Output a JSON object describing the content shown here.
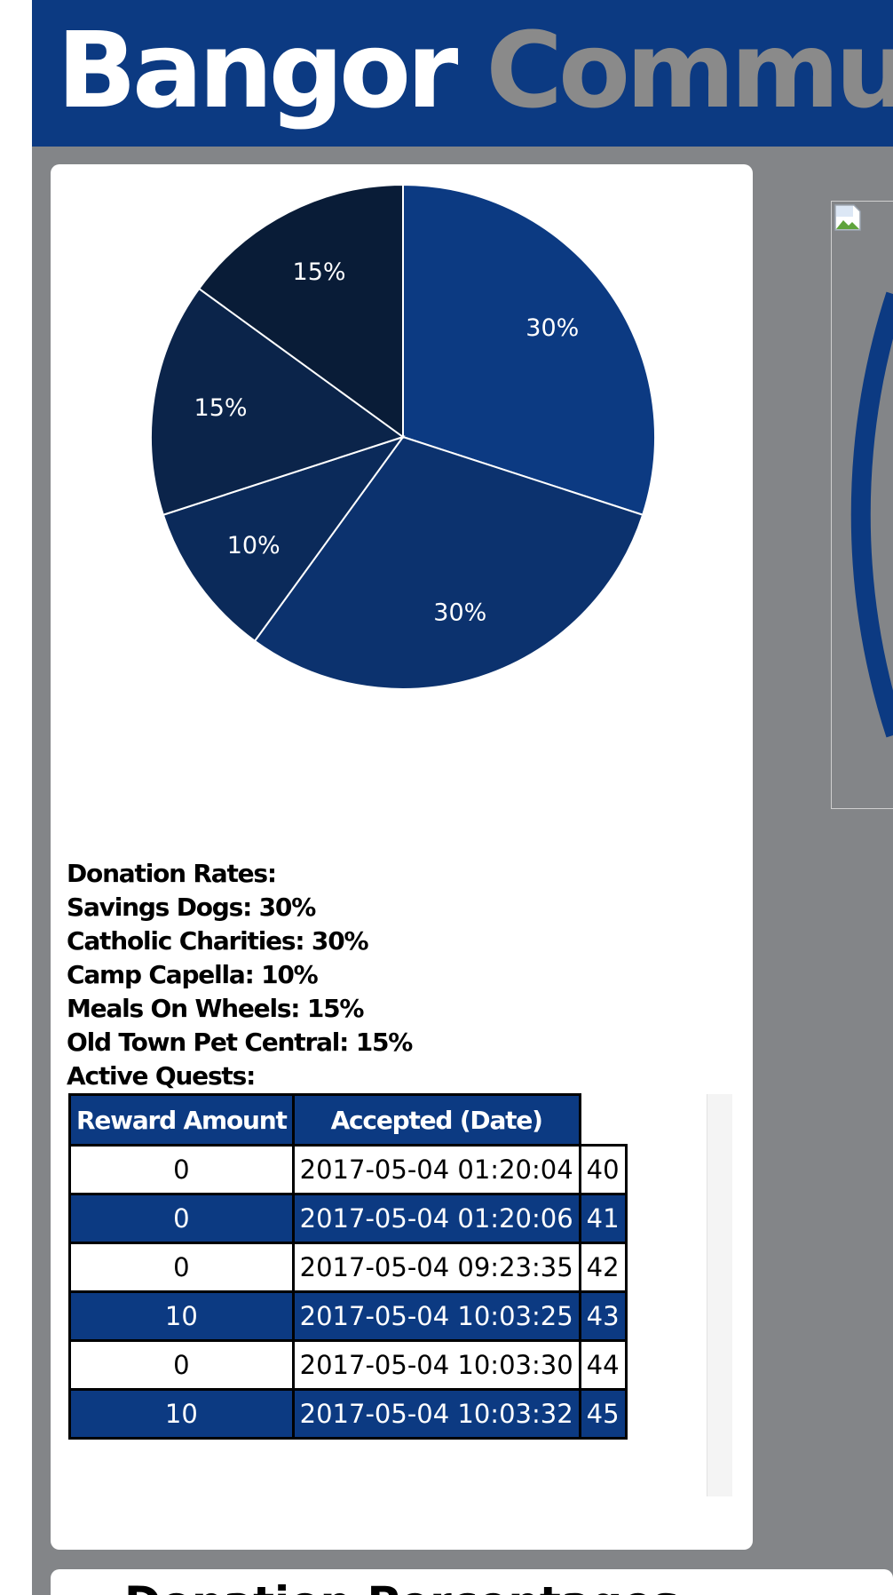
{
  "header": {
    "title_part1": "Bangor",
    "title_part2": "Communi"
  },
  "colors": {
    "brand_blue": "#0c3a82",
    "page_gray": "#838588",
    "title_gray": "#8a8a8a"
  },
  "chart_data": {
    "type": "pie",
    "slices": [
      {
        "category": "Savings Dogs",
        "value": 30,
        "label": "30%",
        "color": "#0c3a82"
      },
      {
        "category": "Catholic Charities",
        "value": 30,
        "label": "30%",
        "color": "#0c326e"
      },
      {
        "category": "Camp Capella",
        "value": 10,
        "label": "10%",
        "color": "#0b2a5a"
      },
      {
        "category": "Meals On Wheels",
        "value": 15,
        "label": "15%",
        "color": "#0b244a"
      },
      {
        "category": "Old Town Pet Central",
        "value": 15,
        "label": "15%",
        "color": "#091c37"
      }
    ],
    "start_angle": "12 o'clock",
    "direction": "clockwise"
  },
  "rates": {
    "heading": "Donation Rates:",
    "items": [
      "Savings Dogs: 30%",
      "Catholic Charities: 30%",
      "Camp Capella: 10%",
      "Meals On Wheels: 15%",
      "Old Town Pet Central: 15%"
    ]
  },
  "quests": {
    "heading": "Active Quests:",
    "columns": [
      "Reward Amount",
      "Accepted (Date)"
    ],
    "rows": [
      [
        "0",
        "2017-05-04 01:20:04",
        "40"
      ],
      [
        "0",
        "2017-05-04 01:20:06",
        "41"
      ],
      [
        "0",
        "2017-05-04 09:23:35",
        "42"
      ],
      [
        "10",
        "2017-05-04 10:03:25",
        "43"
      ],
      [
        "0",
        "2017-05-04 10:03:30",
        "44"
      ],
      [
        "10",
        "2017-05-04 10:03:32",
        "45"
      ]
    ]
  },
  "section2": {
    "title": "Donation Percentages"
  }
}
